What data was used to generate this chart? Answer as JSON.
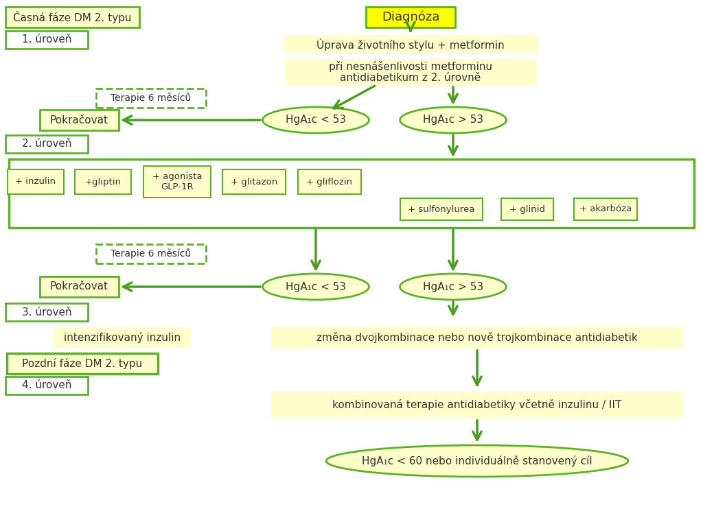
{
  "bg": "#ffffff",
  "yellow_fill": "#ffffcc",
  "yellow_bright": "#ffff00",
  "green_border": "#5ab227",
  "green_dark": "#4a9e1e",
  "text_dark": "#333333",
  "title": "Diagnóza",
  "level1_label": "Časná fáze DM 2. typu",
  "level1_sub": "1. úroveň",
  "terapie1": "Terapie 6 měsíců",
  "pokracovat1": "Pokračovat",
  "uprava": "Úprava životního stylu + metformin",
  "nesnasenlivost_line1": "při nesnášenlivosti metforminu",
  "nesnasenlivost_line2": "antidiabetikum z 2. úrovně",
  "hga_lt53_top": "HgA₁c < 53",
  "hga_gt53_top": "HgA₁c > 53",
  "level2_label": "2. úroveň",
  "drugs1": [
    "+ inzulin",
    "+gliptin",
    "+ agonista\nGLP-1R",
    "+ glitazon",
    "+ gliflozin"
  ],
  "drugs2": [
    "+ sulfonylurea",
    "+ glinid",
    "+ akarbóza"
  ],
  "terapie2": "Terapie 6 měsíců",
  "pokracovat2": "Pokračovat",
  "hga_lt53_mid": "HgA₁c < 53",
  "hga_gt53_mid": "HgA₁c > 53",
  "level3_label": "3. úroveň",
  "intenz": "intenzifikovaný inzulin",
  "zmena": "změna dvojkombinace nebo nově trojkombinace antidiabetik",
  "late_label": "Pozdní fáze DM 2. typu",
  "level4_label": "4. úroveň",
  "kombinovana": "kombinovaná terapie antidiabetiky včetně inzulinu / IIT",
  "hga_final": "HgA₁c < 60 nebo individuálně stanovený cíl"
}
